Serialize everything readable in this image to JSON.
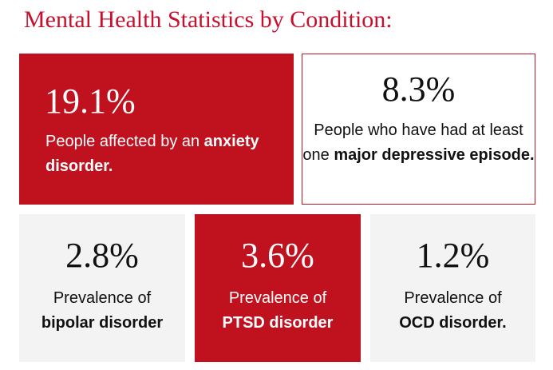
{
  "title": "Mental Health Statistics by Condition:",
  "colors": {
    "accent": "#c0121e",
    "title": "#c8102e",
    "grey_card": "#f3f3f3"
  },
  "cards": [
    {
      "id": "anxiety",
      "value": "19.1%",
      "text_before": "People affected by an ",
      "text_bold": "anxiety disorder.",
      "text_after": "",
      "style": "red"
    },
    {
      "id": "depression",
      "value": "8.3%",
      "text_before": "People who have had at least one ",
      "text_bold": "major depressive episode.",
      "text_after": "",
      "style": "outline"
    },
    {
      "id": "bipolar",
      "value": "2.8%",
      "text_before": "Prevalence of",
      "text_bold": "bipolar disorder",
      "text_after": "",
      "style": "grey"
    },
    {
      "id": "ptsd",
      "value": "3.6%",
      "text_before": "Prevalence of",
      "text_bold": "PTSD disorder",
      "text_after": "",
      "style": "red"
    },
    {
      "id": "ocd",
      "value": "1.2%",
      "text_before": "Prevalence of",
      "text_bold": "OCD disorder.",
      "text_after": "",
      "style": "grey"
    }
  ]
}
